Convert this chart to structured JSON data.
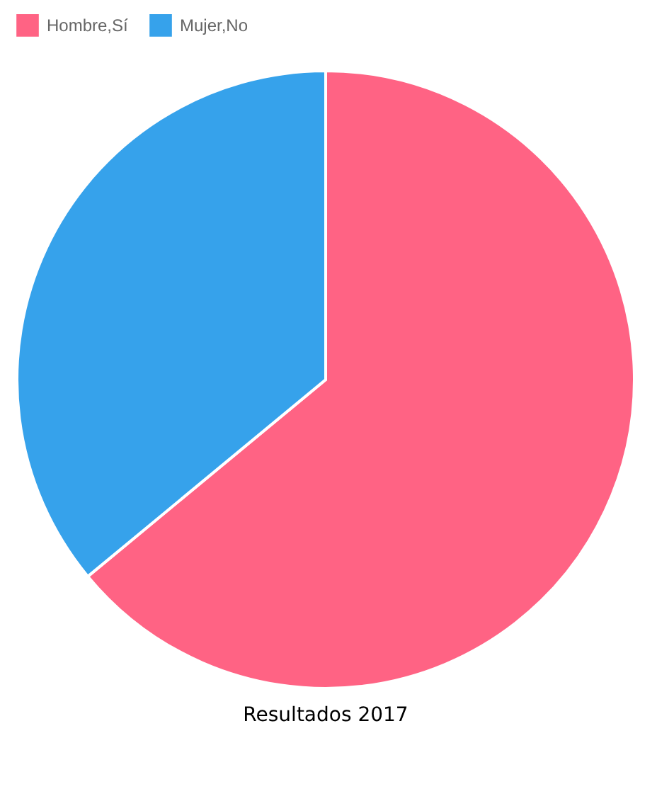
{
  "chart_data": {
    "type": "pie",
    "title": "Resultados 2017",
    "categories": [
      "Hombre,Sí",
      "Mujer,No"
    ],
    "values": [
      64,
      36
    ],
    "colors": [
      "#ff6384",
      "#36a2eb"
    ],
    "legend": "top"
  }
}
